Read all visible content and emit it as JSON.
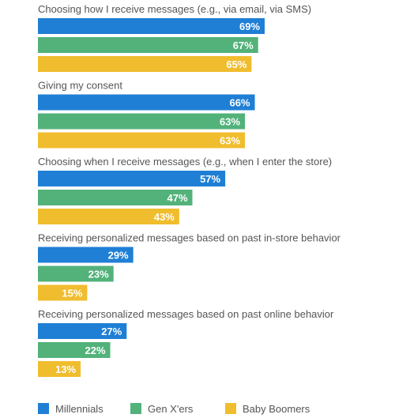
{
  "chart_data": {
    "type": "bar",
    "orientation": "horizontal",
    "categories": [
      "Choosing how I receive messages (e.g., via email, via SMS)",
      "Giving my consent",
      "Choosing when I receive messages (e.g., when I enter the store)",
      "Receiving personalized messages based on past in-store behavior",
      "Receiving personalized messages based on past online behavior"
    ],
    "series": [
      {
        "name": "Millennials",
        "color": "#1f7fd5",
        "values": [
          69,
          66,
          57,
          29,
          27
        ]
      },
      {
        "name": "Gen X'ers",
        "color": "#52b27a",
        "values": [
          67,
          63,
          47,
          23,
          22
        ]
      },
      {
        "name": "Baby Boomers",
        "color": "#f0bd2e",
        "values": [
          65,
          63,
          43,
          15,
          13
        ]
      }
    ],
    "value_suffix": "%",
    "xlim": [
      0,
      100
    ],
    "grid": false,
    "legend_position": "bottom"
  }
}
